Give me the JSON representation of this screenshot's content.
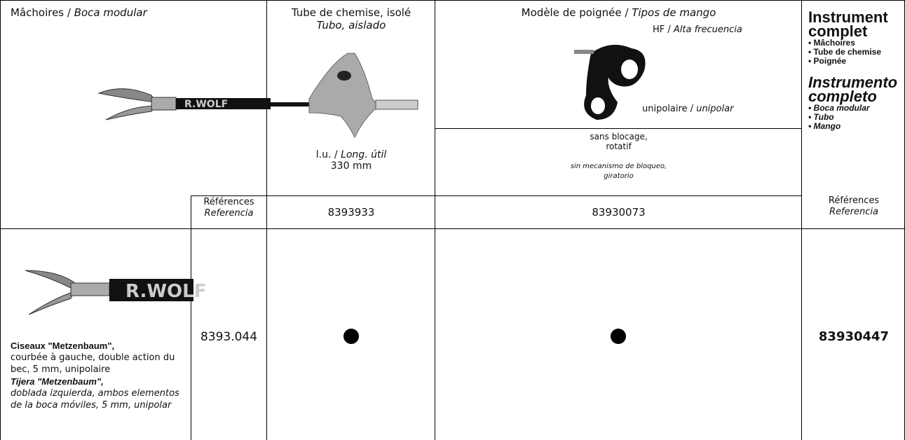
{
  "header": {
    "jaws": {
      "fr": "Mâchoires /",
      "es": "Boca modular"
    },
    "tube": {
      "fr": "Tube de chemise, isolé",
      "es": "Tubo, aislado",
      "length_fr": "l.u. /",
      "length_es": "Long. útil",
      "length": "330 mm"
    },
    "handle": {
      "fr": "Modèle de poignée /",
      "es": "Tipos de mango",
      "hf_fr": "HF /",
      "hf_es": "Alta frecuencia",
      "uni_fr": "unipolaire /",
      "uni_es": "unipolar",
      "lock_fr": [
        "sans blocage,",
        "rotatif"
      ],
      "lock_es": [
        "sin mecanismo de bloqueo,",
        "giratorio"
      ]
    },
    "complete": {
      "fr_title": "Instrument complet",
      "fr_items": [
        "• Mâchoires",
        "• Tube de chemise",
        "• Poignée"
      ],
      "es_title": "Instrumento completo",
      "es_items": [
        "• Boca modular",
        "• Tubo",
        "• Mango"
      ]
    },
    "references": {
      "fr": "Références",
      "es": "Referencia"
    }
  },
  "brand": "R.WOLF",
  "references": {
    "tube": "8393933",
    "handle": "83930073"
  },
  "rows": [
    {
      "name_fr": "Ciseaux \"Metzenbaum\",",
      "desc_fr": "courbée à gauche, double action du bec, 5 mm, unipolaire",
      "name_es": "Tijera \"Metzenbaum\",",
      "desc_es": "doblada izquierda, ambos elementos de la boca móviles, 5 mm, unipolar",
      "code": "8393.044",
      "complete": "83930447"
    }
  ]
}
